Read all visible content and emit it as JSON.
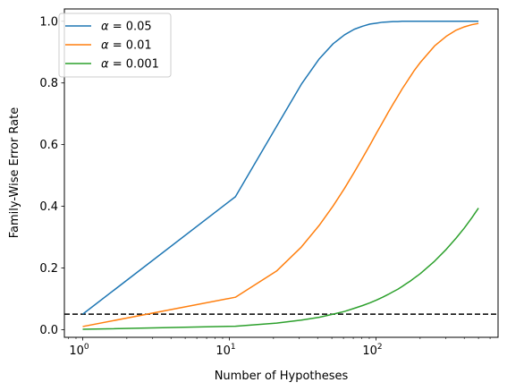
{
  "chart_data": {
    "type": "line",
    "title": "",
    "xlabel": "Number of Hypotheses",
    "ylabel": "Family-Wise Error Rate",
    "xscale": "log",
    "xlim": [
      0.75,
      680
    ],
    "ylim": [
      -0.025,
      1.04
    ],
    "x_ticks": [
      {
        "value": 1,
        "base": "10",
        "exp": "0"
      },
      {
        "value": 10,
        "base": "10",
        "exp": "1"
      },
      {
        "value": 100,
        "base": "10",
        "exp": "2"
      }
    ],
    "y_ticks": [
      "0.0",
      "0.2",
      "0.4",
      "0.6",
      "0.8",
      "1.0"
    ],
    "legend_position": "top-left",
    "grid": false,
    "reference_line": {
      "y": 0.05,
      "style": "dashed",
      "color": "#000000"
    },
    "series": [
      {
        "name": "α = 0.05",
        "legend_prefix": "α",
        "legend_value": "0.05",
        "color": "#1f77b4",
        "x": [
          1,
          11,
          21,
          31,
          41,
          51,
          61,
          71,
          81,
          91,
          101,
          111,
          121,
          131,
          141,
          151,
          161,
          171,
          181,
          191,
          201,
          251,
          301,
          351,
          401,
          451,
          500
        ],
        "y": [
          0.05,
          0.431,
          0.659,
          0.796,
          0.878,
          0.927,
          0.956,
          0.974,
          0.984,
          0.991,
          0.994,
          0.997,
          0.998,
          0.999,
          0.999,
          1.0,
          1.0,
          1.0,
          1.0,
          1.0,
          1.0,
          1.0,
          1.0,
          1.0,
          1.0,
          1.0,
          1.0
        ]
      },
      {
        "name": "α = 0.01",
        "legend_prefix": "α",
        "legend_value": "0.01",
        "color": "#ff7f0e",
        "x": [
          1,
          11,
          21,
          31,
          41,
          51,
          61,
          71,
          81,
          91,
          101,
          111,
          121,
          131,
          141,
          151,
          161,
          171,
          181,
          191,
          201,
          251,
          301,
          351,
          401,
          451,
          500
        ],
        "y": [
          0.01,
          0.105,
          0.19,
          0.268,
          0.338,
          0.401,
          0.458,
          0.51,
          0.557,
          0.599,
          0.638,
          0.672,
          0.704,
          0.732,
          0.757,
          0.781,
          0.801,
          0.82,
          0.838,
          0.853,
          0.867,
          0.92,
          0.951,
          0.971,
          0.982,
          0.989,
          0.993
        ]
      },
      {
        "name": "α = 0.001",
        "legend_prefix": "α",
        "legend_value": "0.001",
        "color": "#2ca02c",
        "x": [
          1,
          11,
          21,
          31,
          41,
          51,
          61,
          71,
          81,
          91,
          101,
          111,
          121,
          131,
          141,
          151,
          161,
          171,
          181,
          191,
          201,
          251,
          301,
          351,
          401,
          451,
          500
        ],
        "y": [
          0.001,
          0.011,
          0.021,
          0.031,
          0.04,
          0.05,
          0.059,
          0.069,
          0.078,
          0.087,
          0.096,
          0.105,
          0.114,
          0.123,
          0.131,
          0.14,
          0.149,
          0.157,
          0.166,
          0.174,
          0.182,
          0.222,
          0.26,
          0.296,
          0.33,
          0.363,
          0.394
        ]
      }
    ]
  }
}
